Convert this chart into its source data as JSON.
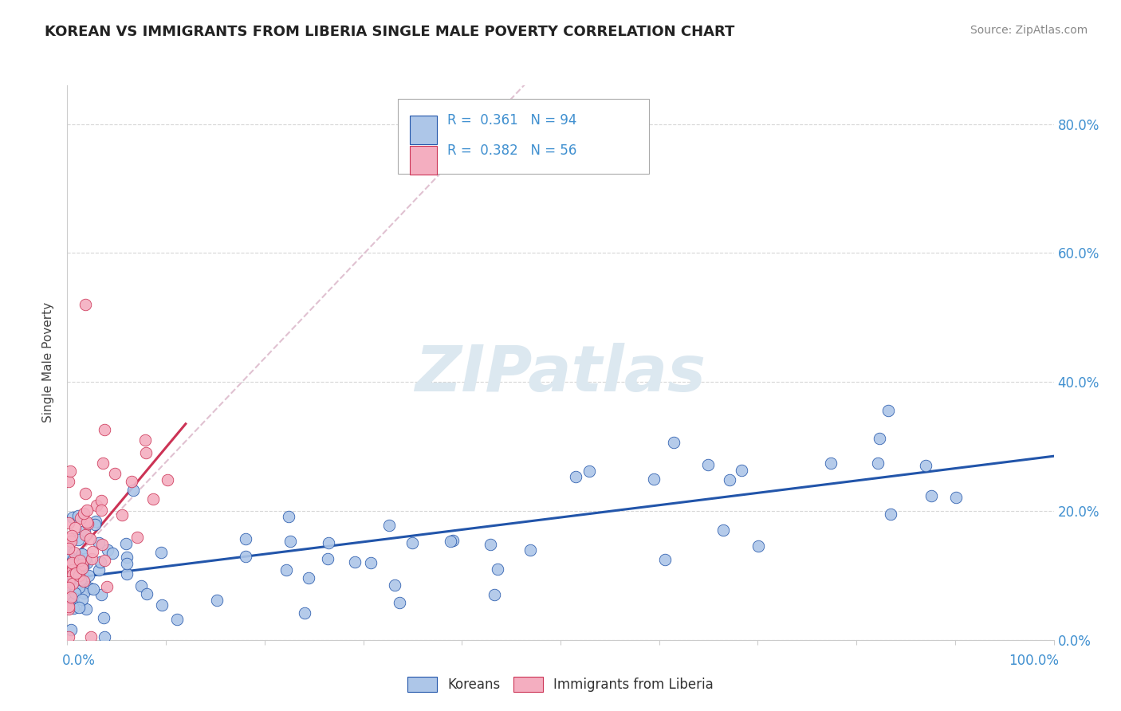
{
  "title": "KOREAN VS IMMIGRANTS FROM LIBERIA SINGLE MALE POVERTY CORRELATION CHART",
  "source": "Source: ZipAtlas.com",
  "ylabel": "Single Male Poverty",
  "legend_korean": "Koreans",
  "legend_liberia": "Immigrants from Liberia",
  "r_korean": "0.361",
  "n_korean": "94",
  "r_liberia": "0.382",
  "n_liberia": "56",
  "korean_color": "#adc6e8",
  "liberia_color": "#f4aec0",
  "korean_line_color": "#2255aa",
  "liberia_line_color": "#cc3355",
  "liberia_dash_color": "#ddbbcc",
  "background_color": "#ffffff",
  "ytick_color": "#4090d0",
  "xtick_color": "#4090d0",
  "grid_color": "#cccccc",
  "title_color": "#222222",
  "source_color": "#888888",
  "watermark_color": "#dce8f0",
  "xlim": [
    0.0,
    1.0
  ],
  "ylim": [
    0.0,
    0.86
  ],
  "yticks": [
    0.0,
    0.2,
    0.4,
    0.6,
    0.8
  ],
  "ytick_labels": [
    "0.0%",
    "20.0%",
    "40.0%",
    "60.0%",
    "80.0%"
  ],
  "korean_trend": [
    0.0,
    1.0,
    0.095,
    0.285
  ],
  "liberia_trend_solid": [
    0.0,
    0.12,
    0.115,
    0.335
  ],
  "liberia_trend_dash": [
    0.0,
    0.55,
    0.115,
    1.0
  ]
}
